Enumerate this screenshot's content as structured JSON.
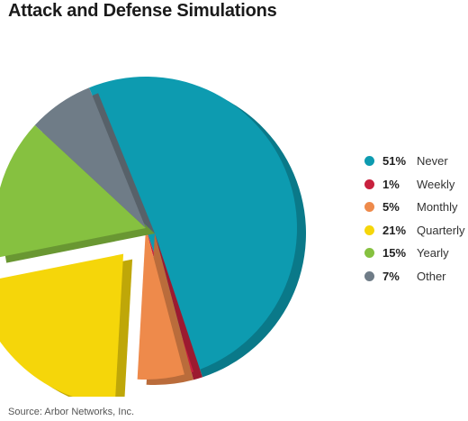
{
  "chart_data": {
    "type": "pie",
    "title": "Attack and Defense Simulations",
    "exploded_slice": "Quarterly",
    "legend_position": "right",
    "slices": [
      {
        "label": "Never",
        "percent_label": "51%",
        "value": 51,
        "color": "#0d9bb0"
      },
      {
        "label": "Weekly",
        "percent_label": "1%",
        "value": 1,
        "color": "#c8213e"
      },
      {
        "label": "Monthly",
        "percent_label": "5%",
        "value": 5,
        "color": "#ee8a4b"
      },
      {
        "label": "Quarterly",
        "percent_label": "21%",
        "value": 21,
        "color": "#f5d60a"
      },
      {
        "label": "Yearly",
        "percent_label": "15%",
        "value": 15,
        "color": "#86c140"
      },
      {
        "label": "Other",
        "percent_label": "7%",
        "value": 7,
        "color": "#6f7c87"
      }
    ]
  },
  "source": "Source: Arbor Networks, Inc."
}
